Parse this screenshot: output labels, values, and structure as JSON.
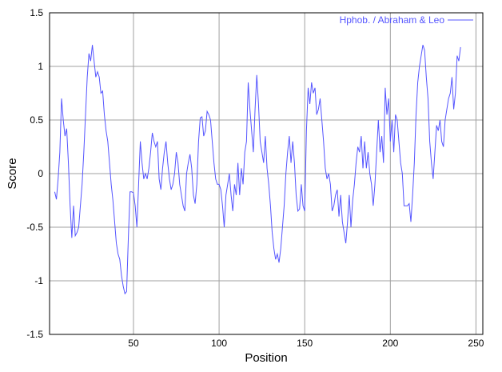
{
  "chart_data": {
    "type": "line",
    "title": "",
    "xlabel": "Position",
    "ylabel": "Score",
    "xlim": [
      1,
      254
    ],
    "ylim": [
      -1.5,
      1.5
    ],
    "x_ticks": [
      50,
      100,
      150,
      200,
      250
    ],
    "y_ticks": [
      -1.5,
      -1,
      -0.5,
      0,
      0.5,
      1,
      1.5
    ],
    "x_tick_labels": [
      "50",
      "100",
      "150",
      "200",
      "250"
    ],
    "y_tick_labels": [
      "-1.5",
      "-1",
      "-0.5",
      "0",
      "0.5",
      "1",
      "1.5"
    ],
    "grid": true,
    "legend_position": "top-right",
    "colors": {
      "series": "#5555ff",
      "grid": "#a0a0a0",
      "frame": "#000000"
    },
    "series": [
      {
        "name": "Hphob. / Abraham & Leo",
        "x_start": 4,
        "x_step": 1,
        "values": [
          -0.17,
          -0.24,
          -0.05,
          0.2,
          0.7,
          0.5,
          0.35,
          0.42,
          0.1,
          -0.3,
          -0.6,
          -0.3,
          -0.58,
          -0.55,
          -0.5,
          -0.3,
          -0.1,
          0.2,
          0.55,
          0.9,
          1.12,
          1.05,
          1.2,
          1.05,
          0.9,
          0.95,
          0.9,
          0.75,
          0.77,
          0.55,
          0.4,
          0.3,
          0.1,
          -0.1,
          -0.25,
          -0.45,
          -0.65,
          -0.75,
          -0.8,
          -0.95,
          -1.05,
          -1.12,
          -1.1,
          -0.6,
          -0.17,
          -0.17,
          -0.18,
          -0.3,
          -0.5,
          -0.1,
          0.3,
          0.1,
          -0.05,
          0.0,
          -0.05,
          0.05,
          0.2,
          0.38,
          0.3,
          0.25,
          0.3,
          -0.05,
          -0.15,
          0.05,
          0.2,
          0.3,
          0.1,
          -0.05,
          -0.15,
          -0.1,
          0.0,
          0.2,
          0.1,
          -0.1,
          -0.2,
          -0.3,
          -0.35,
          0.0,
          0.1,
          0.18,
          0.05,
          -0.2,
          -0.28,
          -0.1,
          0.3,
          0.52,
          0.53,
          0.35,
          0.4,
          0.58,
          0.55,
          0.5,
          0.3,
          0.1,
          -0.05,
          -0.1,
          -0.1,
          -0.15,
          -0.3,
          -0.5,
          -0.2,
          -0.1,
          0.0,
          -0.2,
          -0.35,
          -0.1,
          -0.2,
          0.1,
          -0.2,
          0.05,
          -0.1,
          0.2,
          0.3,
          0.85,
          0.6,
          0.4,
          0.2,
          0.6,
          0.92,
          0.65,
          0.3,
          0.2,
          0.1,
          0.35,
          0.05,
          -0.1,
          -0.3,
          -0.55,
          -0.7,
          -0.8,
          -0.75,
          -0.83,
          -0.7,
          -0.5,
          -0.3,
          0.0,
          0.2,
          0.35,
          0.1,
          0.3,
          0.1,
          -0.2,
          -0.35,
          -0.33,
          -0.1,
          -0.3,
          -0.35,
          0.4,
          0.8,
          0.65,
          0.85,
          0.75,
          0.8,
          0.55,
          0.6,
          0.7,
          0.5,
          0.3,
          0.05,
          -0.05,
          0.0,
          -0.1,
          -0.35,
          -0.3,
          -0.2,
          -0.15,
          -0.4,
          -0.2,
          -0.45,
          -0.55,
          -0.65,
          -0.45,
          -0.2,
          -0.5,
          -0.25,
          -0.1,
          0.1,
          0.25,
          0.2,
          0.35,
          0.05,
          0.3,
          0.05,
          0.2,
          0.0,
          -0.1,
          -0.3,
          -0.1,
          0.2,
          0.5,
          0.2,
          0.35,
          0.1,
          0.8,
          0.55,
          0.7,
          0.3,
          0.5,
          0.2,
          0.55,
          0.5,
          0.3,
          0.1,
          0.0,
          -0.3,
          -0.3,
          -0.3,
          -0.28,
          -0.45,
          -0.2,
          0.1,
          0.55,
          0.85,
          1.0,
          1.1,
          1.2,
          1.15,
          0.9,
          0.7,
          0.3,
          0.1,
          -0.05,
          0.2,
          0.45,
          0.4,
          0.5,
          0.3,
          0.25,
          0.5,
          0.6,
          0.7,
          0.75,
          0.9,
          0.6,
          0.75,
          1.1,
          1.05,
          1.18
        ]
      }
    ]
  }
}
